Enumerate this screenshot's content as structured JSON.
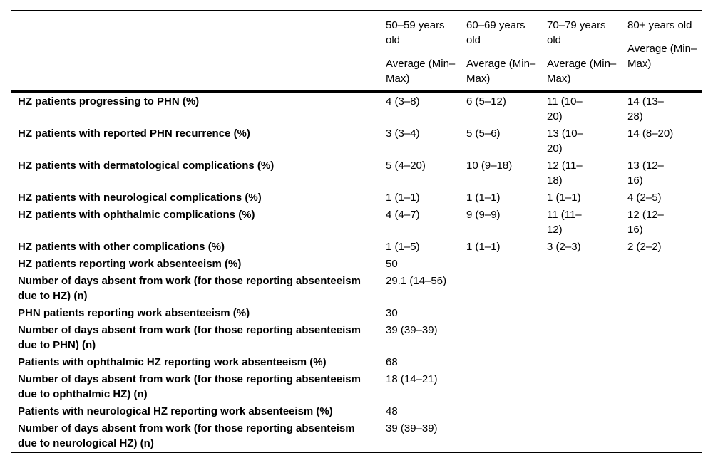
{
  "table": {
    "columns": [
      "50–59 years old",
      "60–69 years old",
      "70–79 years old",
      "80+ years old"
    ],
    "subheader": "Average (Min–Max)",
    "rows": [
      {
        "label": "HZ patients progressing to PHN (%)",
        "values": [
          "4 (3–8)",
          "6 (5–12)",
          "11 (10–20)",
          "14 (13–28)"
        ]
      },
      {
        "label": "HZ patients with reported PHN recurrence (%)",
        "values": [
          "3 (3–4)",
          "5 (5–6)",
          "13 (10–20)",
          "14 (8–20)"
        ]
      },
      {
        "label": "HZ patients with dermatological complications (%)",
        "values": [
          "5 (4–20)",
          "10 (9–18)",
          "12 (11–18)",
          "13 (12–16)"
        ]
      },
      {
        "label": "HZ patients with neurological complications (%)",
        "values": [
          "1 (1–1)",
          "1 (1–1)",
          "1 (1–1)",
          "4 (2–5)"
        ]
      },
      {
        "label": "HZ patients with ophthalmic complications (%)",
        "values": [
          "4 (4–7)",
          "9 (9–9)",
          "11 (11–12)",
          "12 (12–16)"
        ]
      },
      {
        "label": "HZ patients with other complications (%)",
        "values": [
          "1 (1–5)",
          "1 (1–1)",
          "3 (2–3)",
          "2 (2–2)"
        ]
      },
      {
        "label": "HZ patients reporting work absenteeism (%)",
        "values": [
          "50",
          "",
          "",
          ""
        ]
      },
      {
        "label": "Number of days absent from work (for those reporting absenteeism due to HZ) (n)",
        "values": [
          "29.1 (14–56)",
          "",
          "",
          ""
        ]
      },
      {
        "label": "PHN patients reporting work absenteeism (%)",
        "values": [
          "30",
          "",
          "",
          ""
        ]
      },
      {
        "label": "Number of days absent from work (for those reporting absenteeism due to PHN) (n)",
        "values": [
          "39 (39–39)",
          "",
          "",
          ""
        ]
      },
      {
        "label": "Patients with ophthalmic HZ reporting work absenteeism (%)",
        "values": [
          "68",
          "",
          "",
          ""
        ]
      },
      {
        "label": "Number of days absent from work (for those reporting absenteeism due to ophthalmic HZ) (n)",
        "values": [
          "18 (14–21)",
          "",
          "",
          ""
        ]
      },
      {
        "label": "Patients with neurological HZ reporting work absenteeism (%)",
        "values": [
          "48",
          "",
          "",
          ""
        ]
      },
      {
        "label": "Number of days absent from work (for those reporting absenteism due to neurological HZ) (n)",
        "values": [
          "39 (39–39)",
          "",
          "",
          ""
        ]
      }
    ]
  }
}
